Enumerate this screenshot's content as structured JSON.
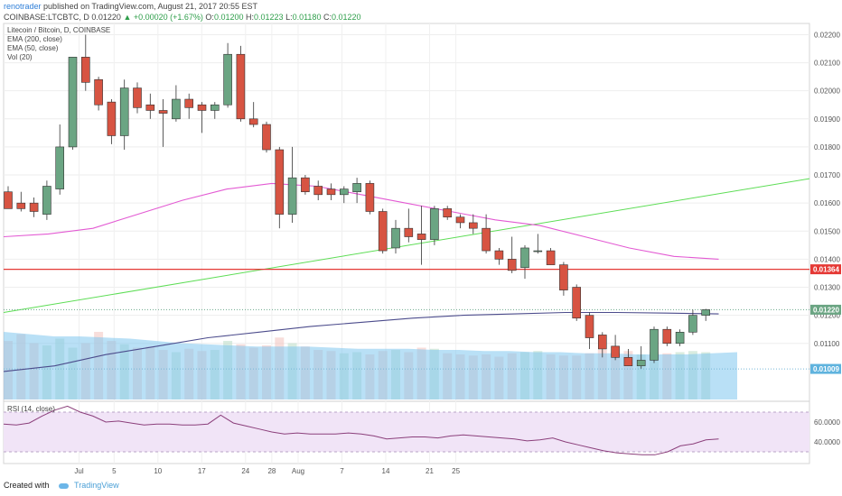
{
  "header": {
    "author": "renotrader",
    "published_text": "published on TradingView.com, August 21, 2017 20:55 EST",
    "symbol": "COINBASE:LTCBTC, D",
    "last": "0.01220",
    "change": "▲ +0.00020 (+1.67%)",
    "o_label": "O:",
    "o_value": "0.01200",
    "h_label": "H:",
    "h_value": "0.01223",
    "l_label": "L:",
    "l_value": "0.01180",
    "c_label": "C:",
    "c_value": "0.01220"
  },
  "legend": {
    "title": "Litecoin / Bitcoin, D, COINBASE",
    "ema200": "EMA (200, close)",
    "ema50": "EMA (50, close)",
    "vol": "Vol (20)",
    "rsi": "RSI (14, close)"
  },
  "footer": {
    "created_with": "Created with",
    "brand": "TradingView"
  },
  "colors": {
    "up": "#6ba583",
    "down": "#d75442",
    "ema50": "#e35ad3",
    "ema200": "#4c4c8c",
    "trend": "#5ddd55",
    "resistance": "#e53935",
    "vol_ma": "#7fc7ef",
    "rsi": "#8b3f7b",
    "rsi_band": "#f1e4f7"
  },
  "chart_data": [
    {
      "type": "candlestick",
      "title": "Litecoin / Bitcoin, D, COINBASE",
      "x_ticks": [
        "Jul",
        "5",
        "10",
        "17",
        "24",
        "28",
        "Aug",
        "7",
        "14",
        "21",
        "25"
      ],
      "y_ticks": [
        "0.01100",
        "0.01200",
        "0.01300",
        "0.01400",
        "0.01500",
        "0.01600",
        "0.01700",
        "0.01800",
        "0.01900",
        "0.02000",
        "0.02100",
        "0.02200"
      ],
      "ylim": [
        0.009,
        0.0224
      ],
      "price_labels": {
        "resistance": "0.01364",
        "last": "0.01220",
        "volume_level": "0.01009"
      },
      "candles": [
        {
          "o": 0.0164,
          "h": 0.0166,
          "l": 0.0158,
          "c": 0.0158
        },
        {
          "o": 0.016,
          "h": 0.0164,
          "l": 0.0157,
          "c": 0.0158
        },
        {
          "o": 0.016,
          "h": 0.0162,
          "l": 0.0155,
          "c": 0.0157
        },
        {
          "o": 0.0156,
          "h": 0.0168,
          "l": 0.0154,
          "c": 0.0166
        },
        {
          "o": 0.0165,
          "h": 0.0188,
          "l": 0.0163,
          "c": 0.018
        },
        {
          "o": 0.018,
          "h": 0.0212,
          "l": 0.0179,
          "c": 0.0212
        },
        {
          "o": 0.0212,
          "h": 0.022,
          "l": 0.02,
          "c": 0.0203
        },
        {
          "o": 0.0204,
          "h": 0.0205,
          "l": 0.0193,
          "c": 0.0195
        },
        {
          "o": 0.0196,
          "h": 0.0197,
          "l": 0.0181,
          "c": 0.0184
        },
        {
          "o": 0.0184,
          "h": 0.0204,
          "l": 0.0179,
          "c": 0.0201
        },
        {
          "o": 0.0201,
          "h": 0.0203,
          "l": 0.0192,
          "c": 0.0194
        },
        {
          "o": 0.0195,
          "h": 0.0199,
          "l": 0.019,
          "c": 0.0193
        },
        {
          "o": 0.0193,
          "h": 0.0197,
          "l": 0.018,
          "c": 0.0192
        },
        {
          "o": 0.019,
          "h": 0.0202,
          "l": 0.0189,
          "c": 0.0197
        },
        {
          "o": 0.0197,
          "h": 0.0199,
          "l": 0.019,
          "c": 0.0194
        },
        {
          "o": 0.0195,
          "h": 0.0196,
          "l": 0.0185,
          "c": 0.0193
        },
        {
          "o": 0.0193,
          "h": 0.0196,
          "l": 0.019,
          "c": 0.0195
        },
        {
          "o": 0.0195,
          "h": 0.0217,
          "l": 0.0194,
          "c": 0.0213
        },
        {
          "o": 0.0213,
          "h": 0.0216,
          "l": 0.0189,
          "c": 0.019
        },
        {
          "o": 0.019,
          "h": 0.0196,
          "l": 0.0187,
          "c": 0.0188
        },
        {
          "o": 0.0188,
          "h": 0.0189,
          "l": 0.0178,
          "c": 0.0179
        },
        {
          "o": 0.0179,
          "h": 0.018,
          "l": 0.0151,
          "c": 0.0156
        },
        {
          "o": 0.0156,
          "h": 0.018,
          "l": 0.0153,
          "c": 0.0169
        },
        {
          "o": 0.0169,
          "h": 0.017,
          "l": 0.0163,
          "c": 0.0164
        },
        {
          "o": 0.0166,
          "h": 0.0168,
          "l": 0.0161,
          "c": 0.0163
        },
        {
          "o": 0.0165,
          "h": 0.0167,
          "l": 0.0161,
          "c": 0.0163
        },
        {
          "o": 0.0163,
          "h": 0.0166,
          "l": 0.016,
          "c": 0.0165
        },
        {
          "o": 0.0164,
          "h": 0.0169,
          "l": 0.016,
          "c": 0.0167
        },
        {
          "o": 0.0167,
          "h": 0.0168,
          "l": 0.0156,
          "c": 0.0157
        },
        {
          "o": 0.0157,
          "h": 0.0158,
          "l": 0.0142,
          "c": 0.0143
        },
        {
          "o": 0.0144,
          "h": 0.0154,
          "l": 0.0142,
          "c": 0.0151
        },
        {
          "o": 0.0151,
          "h": 0.0158,
          "l": 0.0146,
          "c": 0.0148
        },
        {
          "o": 0.0149,
          "h": 0.0159,
          "l": 0.0138,
          "c": 0.0147
        },
        {
          "o": 0.0147,
          "h": 0.0159,
          "l": 0.0145,
          "c": 0.0158
        },
        {
          "o": 0.0158,
          "h": 0.0159,
          "l": 0.0154,
          "c": 0.0155
        },
        {
          "o": 0.0155,
          "h": 0.0156,
          "l": 0.0151,
          "c": 0.0153
        },
        {
          "o": 0.0153,
          "h": 0.0156,
          "l": 0.0149,
          "c": 0.0151
        },
        {
          "o": 0.0151,
          "h": 0.0156,
          "l": 0.0142,
          "c": 0.0143
        },
        {
          "o": 0.0143,
          "h": 0.0144,
          "l": 0.0138,
          "c": 0.014
        },
        {
          "o": 0.014,
          "h": 0.0148,
          "l": 0.0135,
          "c": 0.0136
        },
        {
          "o": 0.0137,
          "h": 0.0145,
          "l": 0.0133,
          "c": 0.0144
        },
        {
          "o": 0.0143,
          "h": 0.0149,
          "l": 0.0142,
          "c": 0.0143
        },
        {
          "o": 0.0143,
          "h": 0.0144,
          "l": 0.0138,
          "c": 0.0138
        },
        {
          "o": 0.0138,
          "h": 0.0139,
          "l": 0.0127,
          "c": 0.0129
        },
        {
          "o": 0.013,
          "h": 0.0131,
          "l": 0.0118,
          "c": 0.0119
        },
        {
          "o": 0.012,
          "h": 0.0121,
          "l": 0.0108,
          "c": 0.0112
        },
        {
          "o": 0.0113,
          "h": 0.0114,
          "l": 0.0105,
          "c": 0.0108
        },
        {
          "o": 0.0109,
          "h": 0.0113,
          "l": 0.0104,
          "c": 0.0105
        },
        {
          "o": 0.0105,
          "h": 0.0108,
          "l": 0.0102,
          "c": 0.0102
        },
        {
          "o": 0.0102,
          "h": 0.0109,
          "l": 0.0101,
          "c": 0.0104
        },
        {
          "o": 0.0104,
          "h": 0.0116,
          "l": 0.0103,
          "c": 0.0115
        },
        {
          "o": 0.0115,
          "h": 0.0116,
          "l": 0.0109,
          "c": 0.011
        },
        {
          "o": 0.011,
          "h": 0.0115,
          "l": 0.0109,
          "c": 0.0114
        },
        {
          "o": 0.0114,
          "h": 0.0122,
          "l": 0.0113,
          "c": 0.012
        },
        {
          "o": 0.012,
          "h": 0.01223,
          "l": 0.0118,
          "c": 0.0122
        }
      ],
      "ema50": [
        0.0148,
        0.0149,
        0.0151,
        0.0156,
        0.0161,
        0.0165,
        0.0167,
        0.0166,
        0.0163,
        0.016,
        0.0157,
        0.0154,
        0.0152,
        0.0148,
        0.0144,
        0.0141,
        0.014
      ],
      "ema200": [
        0.01,
        0.0102,
        0.0106,
        0.0109,
        0.0112,
        0.0114,
        0.0116,
        0.01175,
        0.0119,
        0.012,
        0.01205,
        0.0121,
        0.0121,
        0.01208,
        0.01205
      ],
      "trendline": [
        [
          0,
          0.0121
        ],
        [
          74,
          0.01687
        ]
      ],
      "resistance": 0.01364,
      "volume_level": 0.01009
    },
    {
      "type": "bar",
      "title": "Vol (20)",
      "values": [
        52,
        58,
        50,
        48,
        54,
        46,
        50,
        60,
        52,
        49,
        46,
        47,
        44,
        42,
        45,
        43,
        44,
        52,
        49,
        46,
        48,
        55,
        50,
        47,
        44,
        43,
        41,
        42,
        40,
        43,
        44,
        42,
        46,
        45,
        41,
        40,
        39,
        40,
        38,
        41,
        42,
        43,
        40,
        39,
        39,
        41,
        44,
        42,
        43,
        40,
        42,
        41,
        42,
        43,
        42
      ],
      "ma": [
        60,
        58,
        56,
        56,
        55,
        54,
        52,
        50,
        49,
        48,
        47,
        47,
        47,
        46,
        45,
        45,
        45,
        44,
        44,
        43,
        43,
        42,
        42,
        41,
        41,
        40,
        40,
        40,
        41,
        42
      ]
    },
    {
      "type": "line",
      "title": "RSI (14, close)",
      "y_ticks": [
        "60.0000",
        "40.0000"
      ],
      "ylim": [
        20,
        80
      ],
      "values": [
        58,
        57,
        59,
        66,
        72,
        76,
        70,
        66,
        60,
        61,
        59,
        57,
        58,
        58,
        57,
        57,
        58,
        67,
        59,
        56,
        53,
        50,
        48,
        49,
        48,
        48,
        48,
        49,
        48,
        46,
        43,
        44,
        45,
        45,
        44,
        46,
        47,
        46,
        45,
        44,
        43,
        41,
        42,
        44,
        40,
        37,
        34,
        31,
        29,
        28,
        27,
        27,
        30,
        36,
        38,
        42,
        43
      ],
      "bands": [
        70,
        30
      ]
    }
  ]
}
